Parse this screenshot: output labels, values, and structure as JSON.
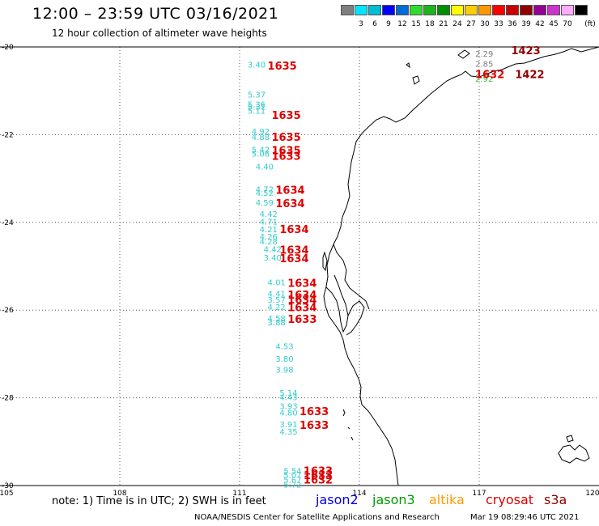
{
  "header": {
    "title": "12:00 – 23:59 UTC 03/16/2021",
    "subtitle": "12 hour collection of altimeter wave heights"
  },
  "legend": {
    "unit": "(ft)",
    "items": [
      {
        "label": "",
        "color": "#7f7f7f"
      },
      {
        "label": "3",
        "color": "#00e5ff"
      },
      {
        "label": "6",
        "color": "#00bcd4"
      },
      {
        "label": "9",
        "color": "#0000ff"
      },
      {
        "label": "12",
        "color": "#006ad7"
      },
      {
        "label": "15",
        "color": "#2ddc2d"
      },
      {
        "label": "18",
        "color": "#1eb41e"
      },
      {
        "label": "21",
        "color": "#008f00"
      },
      {
        "label": "24",
        "color": "#ffff00"
      },
      {
        "label": "27",
        "color": "#ffcc00"
      },
      {
        "label": "30",
        "color": "#ff9900"
      },
      {
        "label": "33",
        "color": "#ff0000"
      },
      {
        "label": "36",
        "color": "#c80000"
      },
      {
        "label": "39",
        "color": "#8f0000"
      },
      {
        "label": "42",
        "color": "#960096"
      },
      {
        "label": "45",
        "color": "#cc33cc"
      },
      {
        "label": "70",
        "color": "#ffaaff"
      },
      {
        "label": "",
        "color": "#000000"
      }
    ]
  },
  "map": {
    "lon_range": [
      105,
      120
    ],
    "lat_range": [
      -30,
      -20
    ],
    "lon_ticks": [
      "105",
      "108",
      "111",
      "114",
      "117",
      "120"
    ],
    "lat_ticks": [
      "-20",
      "-22",
      "-24",
      "-26",
      "-28",
      "-30"
    ],
    "grid": "dotted"
  },
  "observations": [
    {
      "lon": 111.2,
      "lat": -20.4,
      "value": "3.40",
      "color": "#33cccc"
    },
    {
      "lon": 111.2,
      "lat": -21.08,
      "value": "5.37",
      "color": "#33cccc"
    },
    {
      "lon": 111.2,
      "lat": -21.3,
      "value": "5.36",
      "color": "#33cccc"
    },
    {
      "lon": 111.2,
      "lat": -21.36,
      "value": "5.31",
      "color": "#33cccc"
    },
    {
      "lon": 111.2,
      "lat": -21.45,
      "value": "5.11",
      "color": "#33cccc"
    },
    {
      "lon": 111.3,
      "lat": -21.92,
      "value": "4.92",
      "color": "#33cccc"
    },
    {
      "lon": 111.3,
      "lat": -22.05,
      "value": "4.88",
      "color": "#33cccc"
    },
    {
      "lon": 111.3,
      "lat": -22.33,
      "value": "5.42",
      "color": "#33cccc"
    },
    {
      "lon": 111.3,
      "lat": -22.43,
      "value": "5.06",
      "color": "#33cccc"
    },
    {
      "lon": 111.4,
      "lat": -22.72,
      "value": "4.40",
      "color": "#33cccc"
    },
    {
      "lon": 111.4,
      "lat": -23.24,
      "value": "4.72",
      "color": "#33cccc"
    },
    {
      "lon": 111.4,
      "lat": -23.32,
      "value": "4.52",
      "color": "#33cccc"
    },
    {
      "lon": 111.4,
      "lat": -23.54,
      "value": "4.59",
      "color": "#33cccc"
    },
    {
      "lon": 111.5,
      "lat": -23.8,
      "value": "4.42",
      "color": "#33cccc"
    },
    {
      "lon": 111.5,
      "lat": -23.98,
      "value": "4.71",
      "color": "#33cccc"
    },
    {
      "lon": 111.5,
      "lat": -24.15,
      "value": "4.21",
      "color": "#33cccc"
    },
    {
      "lon": 111.5,
      "lat": -24.32,
      "value": "4.26",
      "color": "#33cccc"
    },
    {
      "lon": 111.5,
      "lat": -24.43,
      "value": "4.28",
      "color": "#33cccc"
    },
    {
      "lon": 111.6,
      "lat": -24.6,
      "value": "4.42",
      "color": "#33cccc"
    },
    {
      "lon": 111.6,
      "lat": -24.8,
      "value": "3.40",
      "color": "#33cccc"
    },
    {
      "lon": 111.7,
      "lat": -25.36,
      "value": "4.01",
      "color": "#33cccc"
    },
    {
      "lon": 111.7,
      "lat": -25.62,
      "value": "4.41",
      "color": "#33cccc"
    },
    {
      "lon": 111.7,
      "lat": -25.76,
      "value": "3.57",
      "color": "#33cccc"
    },
    {
      "lon": 111.7,
      "lat": -25.92,
      "value": "4.22",
      "color": "#33cccc"
    },
    {
      "lon": 111.7,
      "lat": -26.18,
      "value": "4.58",
      "color": "#33cccc"
    },
    {
      "lon": 111.7,
      "lat": -26.27,
      "value": "3.88",
      "color": "#33cccc"
    },
    {
      "lon": 111.9,
      "lat": -26.82,
      "value": "4.53",
      "color": "#33cccc"
    },
    {
      "lon": 111.9,
      "lat": -27.1,
      "value": "3.80",
      "color": "#33cccc"
    },
    {
      "lon": 111.9,
      "lat": -27.35,
      "value": "3.98",
      "color": "#33cccc"
    },
    {
      "lon": 112.0,
      "lat": -27.88,
      "value": "5.14",
      "color": "#33cccc"
    },
    {
      "lon": 112.0,
      "lat": -27.98,
      "value": "4.43",
      "color": "#33cccc"
    },
    {
      "lon": 112.0,
      "lat": -28.18,
      "value": "3.93",
      "color": "#33cccc"
    },
    {
      "lon": 112.0,
      "lat": -28.33,
      "value": "4.80",
      "color": "#33cccc"
    },
    {
      "lon": 112.0,
      "lat": -28.6,
      "value": "3.91",
      "color": "#33cccc"
    },
    {
      "lon": 112.0,
      "lat": -28.76,
      "value": "4.35",
      "color": "#33cccc"
    },
    {
      "lon": 112.1,
      "lat": -29.66,
      "value": "5.54",
      "color": "#33cccc"
    },
    {
      "lon": 112.1,
      "lat": -29.75,
      "value": "5.07",
      "color": "#33cccc"
    },
    {
      "lon": 112.1,
      "lat": -29.86,
      "value": "5.67",
      "color": "#33cccc"
    },
    {
      "lon": 112.1,
      "lat": -29.97,
      "value": "5.72",
      "color": "#33cccc"
    },
    {
      "lon": 116.9,
      "lat": -20.15,
      "value": "2.29",
      "color": "#7f7f7f"
    },
    {
      "lon": 116.9,
      "lat": -20.38,
      "value": "2.85",
      "color": "#7f7f7f"
    },
    {
      "lon": 116.9,
      "lat": -20.6,
      "value": "2.8",
      "color": "#7f7f7f"
    },
    {
      "lon": 116.9,
      "lat": -20.72,
      "value": "2.92",
      "color": "#44bb44"
    }
  ],
  "pass_times": [
    {
      "lon": 111.7,
      "lat": -20.42,
      "time": "1635",
      "color": "#dd0000"
    },
    {
      "lon": 111.8,
      "lat": -21.55,
      "time": "1635",
      "color": "#dd0000"
    },
    {
      "lon": 111.8,
      "lat": -22.05,
      "time": "1635",
      "color": "#dd0000"
    },
    {
      "lon": 111.8,
      "lat": -22.35,
      "time": "1635",
      "color": "#dd0000"
    },
    {
      "lon": 111.8,
      "lat": -22.48,
      "time": "1633",
      "color": "#dd0000"
    },
    {
      "lon": 111.9,
      "lat": -23.26,
      "time": "1634",
      "color": "#dd0000"
    },
    {
      "lon": 111.9,
      "lat": -23.56,
      "time": "1634",
      "color": "#dd0000"
    },
    {
      "lon": 112.0,
      "lat": -24.15,
      "time": "1634",
      "color": "#dd0000"
    },
    {
      "lon": 112.0,
      "lat": -24.62,
      "time": "1634",
      "color": "#dd0000"
    },
    {
      "lon": 112.0,
      "lat": -24.82,
      "time": "1634",
      "color": "#dd0000"
    },
    {
      "lon": 112.2,
      "lat": -25.38,
      "time": "1634",
      "color": "#dd0000"
    },
    {
      "lon": 112.2,
      "lat": -25.65,
      "time": "1634",
      "color": "#dd0000"
    },
    {
      "lon": 112.2,
      "lat": -25.76,
      "time": "1634",
      "color": "#dd0000"
    },
    {
      "lon": 112.2,
      "lat": -25.93,
      "time": "1634",
      "color": "#dd0000"
    },
    {
      "lon": 112.2,
      "lat": -26.2,
      "time": "1633",
      "color": "#dd0000"
    },
    {
      "lon": 112.5,
      "lat": -28.3,
      "time": "1633",
      "color": "#dd0000"
    },
    {
      "lon": 112.5,
      "lat": -28.62,
      "time": "1633",
      "color": "#dd0000"
    },
    {
      "lon": 112.6,
      "lat": -29.66,
      "time": "1633",
      "color": "#dd0000"
    },
    {
      "lon": 112.6,
      "lat": -29.76,
      "time": "1633",
      "color": "#dd0000"
    },
    {
      "lon": 112.6,
      "lat": -29.86,
      "time": "1632",
      "color": "#dd0000"
    },
    {
      "lon": 116.9,
      "lat": -20.62,
      "time": "1632",
      "color": "#dd0000"
    },
    {
      "lon": 117.8,
      "lat": -20.07,
      "time": "1423",
      "color": "#8f0000"
    },
    {
      "lon": 117.9,
      "lat": -20.62,
      "time": "1422",
      "color": "#8f0000"
    }
  ],
  "footer": {
    "note": "note: 1) Time is in UTC; 2) SWH is in feet",
    "satellites": [
      {
        "name": "jason2",
        "color": "#0000dd"
      },
      {
        "name": "jason3",
        "color": "#009900"
      },
      {
        "name": "altika",
        "color": "#ff9900"
      },
      {
        "name": "cryosat",
        "color": "#dd0000"
      },
      {
        "name": "s3a",
        "color": "#8f0000"
      }
    ],
    "credit": "NOAA/NESDIS Center for Satellite Applications and Research",
    "timestamp": "Mar 19 08:29:46 UTC 2021"
  }
}
